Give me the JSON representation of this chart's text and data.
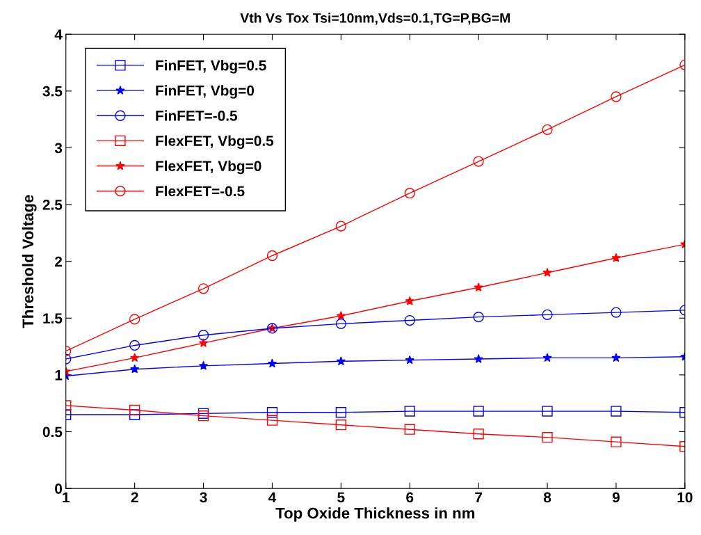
{
  "chart_data": {
    "type": "line",
    "title": "Vth Vs Tox Tsi=10nm,Vds=0.1,TG=P,BG=M",
    "xlabel": "Top Oxide Thickness in nm",
    "ylabel": "Threshold Voltage",
    "x": [
      1,
      2,
      3,
      4,
      5,
      6,
      7,
      8,
      9,
      10
    ],
    "xlim": [
      1,
      10
    ],
    "xticks": [
      1,
      2,
      3,
      4,
      5,
      6,
      7,
      8,
      9,
      10
    ],
    "ylim": [
      0,
      4
    ],
    "yticks": [
      0,
      0.5,
      1,
      1.5,
      2,
      2.5,
      3,
      3.5,
      4
    ],
    "grid": false,
    "legend": "top left",
    "line_style": "solid",
    "series": [
      {
        "name": "FinFET, Vbg=0.5",
        "color": "#0000ff",
        "marker": "square",
        "values": [
          0.65,
          0.65,
          0.66,
          0.67,
          0.67,
          0.68,
          0.68,
          0.68,
          0.68,
          0.67
        ]
      },
      {
        "name": "FinFET, Vbg=0",
        "color": "#0000ff",
        "marker": "star",
        "values": [
          0.99,
          1.05,
          1.08,
          1.1,
          1.12,
          1.13,
          1.14,
          1.15,
          1.15,
          1.16
        ]
      },
      {
        "name": "FinFET=-0.5",
        "color": "#0000ff",
        "marker": "circle",
        "values": [
          1.14,
          1.26,
          1.35,
          1.41,
          1.45,
          1.48,
          1.51,
          1.53,
          1.55,
          1.57
        ]
      },
      {
        "name": "FlexFET, Vbg=0.5",
        "color": "#ff0000",
        "marker": "square",
        "values": [
          0.73,
          0.69,
          0.64,
          0.6,
          0.56,
          0.52,
          0.48,
          0.45,
          0.41,
          0.37
        ]
      },
      {
        "name": "FlexFET, Vbg=0",
        "color": "#ff0000",
        "marker": "star",
        "values": [
          1.03,
          1.15,
          1.28,
          1.41,
          1.52,
          1.65,
          1.77,
          1.9,
          2.03,
          2.15
        ]
      },
      {
        "name": "FlexFET=-0.5",
        "color": "#ff0000",
        "marker": "circle",
        "values": [
          1.21,
          1.49,
          1.76,
          2.05,
          2.31,
          2.6,
          2.88,
          3.16,
          3.45,
          3.73
        ]
      }
    ]
  }
}
